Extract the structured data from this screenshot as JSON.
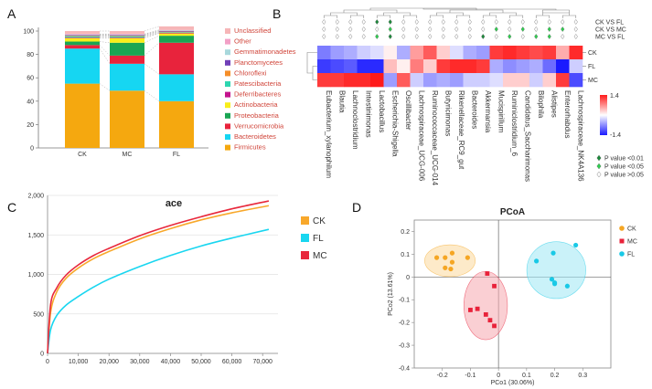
{
  "panels": {
    "a": "A",
    "b": "B",
    "c": "C",
    "d": "D"
  },
  "chart_data": [
    {
      "type": "bar",
      "stacked": true,
      "categories": [
        "CK",
        "MC",
        "FL"
      ],
      "ylim": [
        0,
        100
      ],
      "yticks": [
        0,
        20,
        40,
        60,
        80,
        100
      ],
      "series": [
        {
          "name": "Firmicutes",
          "color": "#f5a80f",
          "values": [
            55,
            49,
            40
          ]
        },
        {
          "name": "Bacteroidetes",
          "color": "#16d6f2",
          "values": [
            30,
            23,
            23
          ]
        },
        {
          "name": "Verrucomicrobia",
          "color": "#e8233c",
          "values": [
            3,
            7,
            27
          ]
        },
        {
          "name": "Proteobacteria",
          "color": "#1aa553",
          "values": [
            3,
            11,
            6
          ]
        },
        {
          "name": "Actinobacteria",
          "color": "#f8ee1a",
          "values": [
            3,
            4,
            2
          ]
        },
        {
          "name": "Deferribacteres",
          "color": "#c4138e",
          "values": [
            0.5,
            0.5,
            0.5
          ]
        },
        {
          "name": "Patescibacteria",
          "color": "#2ed6b0",
          "values": [
            1,
            1,
            0.5
          ]
        },
        {
          "name": "Chloroflexi",
          "color": "#f58e29",
          "values": [
            0.5,
            0.5,
            0.5
          ]
        },
        {
          "name": "Planctomycetes",
          "color": "#7040b8",
          "values": [
            0.5,
            0.5,
            0.5
          ]
        },
        {
          "name": "Gemmatimonadetes",
          "color": "#a8d8dc",
          "values": [
            0.5,
            0.5,
            0.5
          ]
        },
        {
          "name": "Other",
          "color": "#f2a0c6",
          "values": [
            0.5,
            0.5,
            0.5
          ]
        },
        {
          "name": "Unclassified",
          "color": "#f6b6b8",
          "values": [
            2.5,
            2.5,
            3
          ]
        }
      ],
      "legend_order": [
        "Unclassified",
        "Other",
        "Gemmatimonadetes",
        "Planctomycetes",
        "Chloroflexi",
        "Patescibacteria",
        "Deferribacteres",
        "Actinobacteria",
        "Proteobacteria",
        "Verrucomicrobia",
        "Bacteroidetes",
        "Firmicutes"
      ]
    },
    {
      "type": "heatmap",
      "rows": [
        "CK",
        "FL",
        "MC"
      ],
      "columns": [
        "Eubacterium_xylanophilum",
        "Blautia",
        "Lachnoclostridium",
        "Intestinimonas",
        "Lactobacillus",
        "Escherichia-Shigella",
        "Oscillibacter",
        "Lachnospiraceae_UCG-006",
        "Ruminococcaceae_UCG-014",
        "Butyricimonas",
        "Rikenellaceae_RC9_gut",
        "Bacteroides",
        "Akkermansia",
        "Mucispirillum",
        "Ruminiclostridium_6",
        "Candidatus_Saccharimonas",
        "Bilophila",
        "Alistipes",
        "Enterorhabdus",
        "Lachnospiraceae_NK4A136"
      ],
      "values": [
        [
          -0.8,
          -0.6,
          -0.5,
          -0.3,
          -0.2,
          0.1,
          -0.5,
          0.6,
          1.0,
          0.3,
          -0.2,
          -0.5,
          -0.6,
          1.2,
          1.3,
          1.2,
          1.1,
          1.2,
          0.5,
          1.3
        ],
        [
          -1.2,
          -1.1,
          -1.0,
          -1.3,
          -1.3,
          0.4,
          0.1,
          0.8,
          0.3,
          1.2,
          1.3,
          1.3,
          1.2,
          -0.5,
          -0.7,
          -0.6,
          -0.5,
          -0.9,
          -1.4,
          -0.3
        ],
        [
          1.2,
          1.2,
          1.3,
          1.3,
          1.4,
          -0.6,
          1.0,
          -0.3,
          -0.6,
          -0.5,
          -0.6,
          -0.3,
          -0.3,
          -0.2,
          0.3,
          0.3,
          -0.3,
          0.3,
          1.2,
          -1.1
        ]
      ],
      "colorbar": {
        "max": "1.4",
        "min": "-1.4",
        "low_color": "#1a1aff",
        "mid_color": "#ffffff",
        "high_color": "#ff1a1a"
      },
      "sig_rows": [
        "CK VS FL",
        "CK VS MC",
        "MC VS FL"
      ],
      "sig_marks": [
        [
          "n",
          "n",
          "n",
          "n",
          "s",
          "s",
          "n",
          "n",
          "n",
          "n",
          "n",
          "n",
          "n",
          "n",
          "n",
          "n",
          "n",
          "n",
          "n",
          "n"
        ],
        [
          "n",
          "n",
          "n",
          "n",
          "n",
          "m",
          "n",
          "n",
          "n",
          "n",
          "n",
          "n",
          "n",
          "m",
          "n",
          "m",
          "n",
          "m",
          "m",
          "n"
        ],
        [
          "n",
          "n",
          "n",
          "n",
          "m",
          "s",
          "n",
          "n",
          "n",
          "n",
          "n",
          "n",
          "s",
          "n",
          "m",
          "n",
          "m",
          "m",
          "n",
          "n"
        ]
      ],
      "sig_legend": [
        {
          "key": "s",
          "label": "P value <0.01",
          "color": "#1a8a3a"
        },
        {
          "key": "m",
          "label": "P value <0.05",
          "color": "#2ecf4f"
        },
        {
          "key": "n",
          "label": "P value >0.05",
          "color": "#ffffff"
        }
      ]
    },
    {
      "type": "line",
      "title": "ace",
      "xlim": [
        0,
        75000
      ],
      "ylim": [
        0,
        2000
      ],
      "xticks": [
        0,
        10000,
        20000,
        30000,
        40000,
        50000,
        60000,
        70000
      ],
      "xticklabels": [
        "0",
        "10,000",
        "20,000",
        "30,000",
        "40,000",
        "50,000",
        "60,000",
        "70,000"
      ],
      "yticks": [
        0,
        500,
        1000,
        1500,
        2000
      ],
      "yticklabels": [
        "0",
        "500",
        "1,000",
        "1,500",
        "2,000"
      ],
      "series": [
        {
          "name": "CK",
          "color": "#f8a82b",
          "x": [
            0,
            1000,
            3000,
            6000,
            10000,
            15000,
            20000,
            30000,
            40000,
            50000,
            60000,
            72000
          ],
          "values": [
            0,
            520,
            780,
            950,
            1080,
            1200,
            1290,
            1450,
            1580,
            1690,
            1780,
            1870
          ]
        },
        {
          "name": "FL",
          "color": "#19d6f0",
          "x": [
            0,
            1000,
            3000,
            6000,
            10000,
            15000,
            20000,
            30000,
            40000,
            50000,
            60000,
            72000
          ],
          "values": [
            0,
            300,
            480,
            610,
            720,
            840,
            940,
            1100,
            1240,
            1360,
            1460,
            1570
          ]
        },
        {
          "name": "MC",
          "color": "#e8283c",
          "x": [
            0,
            1000,
            3000,
            6000,
            10000,
            15000,
            20000,
            30000,
            40000,
            50000,
            60000,
            72000
          ],
          "values": [
            0,
            620,
            830,
            990,
            1120,
            1240,
            1330,
            1490,
            1620,
            1730,
            1830,
            1930
          ]
        }
      ]
    },
    {
      "type": "scatter",
      "title": "PCoA",
      "xlabel": "PCo1 (30.06%)",
      "ylabel": "PCo2 (13.61%)",
      "xlim": [
        -0.3,
        0.4
      ],
      "ylim": [
        -0.4,
        0.25
      ],
      "xticks": [
        -0.2,
        -0.1,
        0.0,
        0.1,
        0.2,
        0.3
      ],
      "xticklabels": [
        "-0.2",
        "-0.1",
        "0",
        "0.1",
        "0.2",
        "0.3"
      ],
      "yticks": [
        -0.4,
        -0.3,
        -0.2,
        -0.1,
        0.0,
        0.1,
        0.2
      ],
      "yticklabels": [
        "-0.4",
        "-0.3",
        "-0.2",
        "-0.1",
        "0",
        "0.1",
        "0.2"
      ],
      "series": [
        {
          "name": "CK",
          "color": "#f5a623",
          "marker": "circle",
          "ellipse_fill": "#fbd99c",
          "points": [
            [
              -0.22,
              0.085
            ],
            [
              -0.19,
              0.085
            ],
            [
              -0.165,
              0.105
            ],
            [
              -0.165,
              0.065
            ],
            [
              -0.19,
              0.04
            ],
            [
              -0.11,
              0.085
            ],
            [
              -0.17,
              0.035
            ]
          ]
        },
        {
          "name": "MC",
          "color": "#e8223a",
          "marker": "square",
          "ellipse_fill": "#f5a8ae",
          "points": [
            [
              -0.04,
              0.015
            ],
            [
              -0.015,
              -0.04
            ],
            [
              -0.1,
              -0.145
            ],
            [
              -0.075,
              -0.14
            ],
            [
              -0.03,
              -0.19
            ],
            [
              -0.015,
              -0.215
            ],
            [
              -0.045,
              -0.165
            ]
          ]
        },
        {
          "name": "FL",
          "color": "#19c9e6",
          "marker": "circle",
          "ellipse_fill": "#9ee7f4",
          "points": [
            [
              0.135,
              0.07
            ],
            [
              0.195,
              0.105
            ],
            [
              0.275,
              0.14
            ],
            [
              0.2,
              -0.03
            ],
            [
              0.19,
              -0.01
            ],
            [
              0.245,
              -0.04
            ],
            [
              0.2,
              -0.025
            ]
          ]
        }
      ]
    }
  ]
}
